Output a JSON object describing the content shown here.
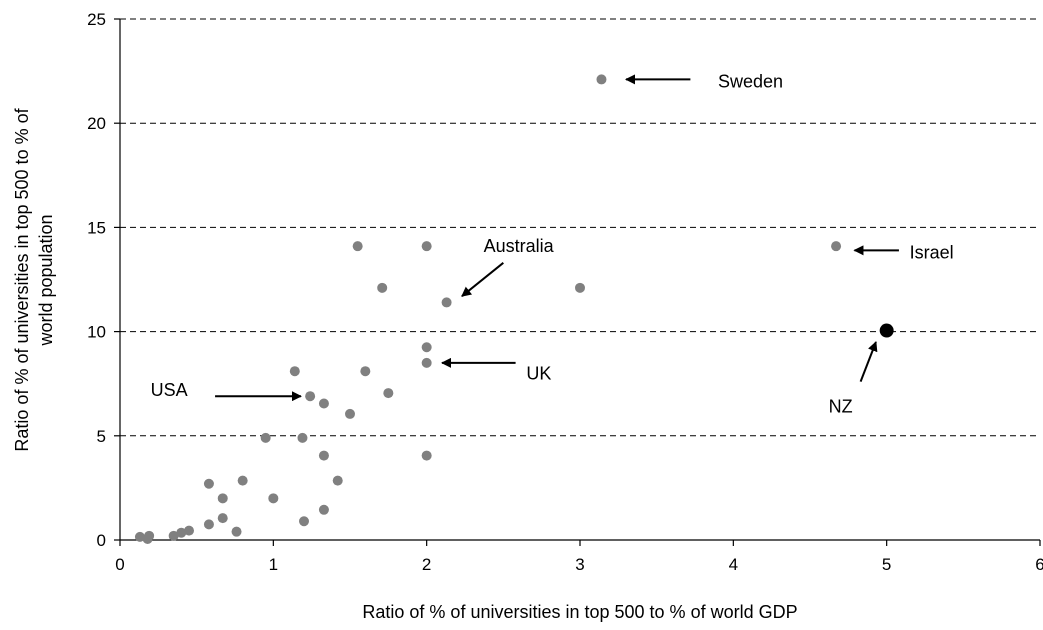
{
  "chart_data": {
    "type": "scatter",
    "title": "",
    "xlabel": "Ratio of % of universities in top 500 to % of world GDP",
    "ylabel_lines": [
      "Ratio of % of universities in top 500 to % of",
      "world population"
    ],
    "xlim": [
      0,
      6
    ],
    "ylim": [
      0,
      25
    ],
    "xticks": [
      0,
      1,
      2,
      3,
      4,
      5,
      6
    ],
    "yticks": [
      0,
      5,
      10,
      15,
      20,
      25
    ],
    "grid": "horizontal dashed",
    "point_color": "#808080",
    "highlight_color": "#000000",
    "points": [
      {
        "x": 0.13,
        "y": 0.15
      },
      {
        "x": 0.18,
        "y": 0.05
      },
      {
        "x": 0.19,
        "y": 0.2
      },
      {
        "x": 0.35,
        "y": 0.2
      },
      {
        "x": 0.4,
        "y": 0.35
      },
      {
        "x": 0.45,
        "y": 0.45
      },
      {
        "x": 0.58,
        "y": 0.75
      },
      {
        "x": 0.58,
        "y": 2.7
      },
      {
        "x": 0.67,
        "y": 1.05
      },
      {
        "x": 0.67,
        "y": 2.0
      },
      {
        "x": 0.76,
        "y": 0.4
      },
      {
        "x": 0.8,
        "y": 2.85
      },
      {
        "x": 0.95,
        "y": 4.9
      },
      {
        "x": 1.0,
        "y": 2.0
      },
      {
        "x": 1.14,
        "y": 8.1
      },
      {
        "x": 1.19,
        "y": 4.9
      },
      {
        "x": 1.2,
        "y": 0.9
      },
      {
        "x": 1.24,
        "y": 6.9
      },
      {
        "x": 1.33,
        "y": 6.55
      },
      {
        "x": 1.33,
        "y": 4.05
      },
      {
        "x": 1.33,
        "y": 1.45
      },
      {
        "x": 1.42,
        "y": 2.85
      },
      {
        "x": 1.5,
        "y": 6.05
      },
      {
        "x": 1.55,
        "y": 14.1
      },
      {
        "x": 1.6,
        "y": 8.1
      },
      {
        "x": 1.71,
        "y": 12.1
      },
      {
        "x": 1.75,
        "y": 7.05
      },
      {
        "x": 2.0,
        "y": 14.1
      },
      {
        "x": 2.0,
        "y": 9.25
      },
      {
        "x": 2.0,
        "y": 8.5
      },
      {
        "x": 2.0,
        "y": 4.05
      },
      {
        "x": 2.13,
        "y": 11.4
      },
      {
        "x": 3.0,
        "y": 12.1
      },
      {
        "x": 3.14,
        "y": 22.1
      },
      {
        "x": 4.67,
        "y": 14.1
      }
    ],
    "highlight_points": [
      {
        "x": 5.0,
        "y": 10.05,
        "label": "NZ"
      }
    ],
    "annotations": [
      {
        "label": "Sweden",
        "text_x": 3.9,
        "text_y": 22.0,
        "anchor": "start",
        "from_x": 3.72,
        "from_y": 22.1,
        "to_x": 3.3,
        "to_y": 22.1
      },
      {
        "label": "Australia",
        "text_x": 2.6,
        "text_y": 14.1,
        "anchor": "middle",
        "from_x": 2.5,
        "from_y": 13.3,
        "to_x": 2.23,
        "to_y": 11.7
      },
      {
        "label": "Israel",
        "text_x": 5.15,
        "text_y": 13.8,
        "anchor": "start",
        "from_x": 5.08,
        "from_y": 13.9,
        "to_x": 4.79,
        "to_y": 13.9
      },
      {
        "label": "UK",
        "text_x": 2.65,
        "text_y": 8.0,
        "anchor": "start",
        "from_x": 2.58,
        "from_y": 8.5,
        "to_x": 2.1,
        "to_y": 8.5
      },
      {
        "label": "USA",
        "text_x": 0.2,
        "text_y": 7.2,
        "anchor": "start",
        "from_x": 0.62,
        "from_y": 6.9,
        "to_x": 1.18,
        "to_y": 6.9
      },
      {
        "label": "NZ",
        "text_x": 4.7,
        "text_y": 6.4,
        "anchor": "middle",
        "from_x": 4.83,
        "from_y": 7.6,
        "to_x": 4.93,
        "to_y": 9.5
      }
    ]
  }
}
